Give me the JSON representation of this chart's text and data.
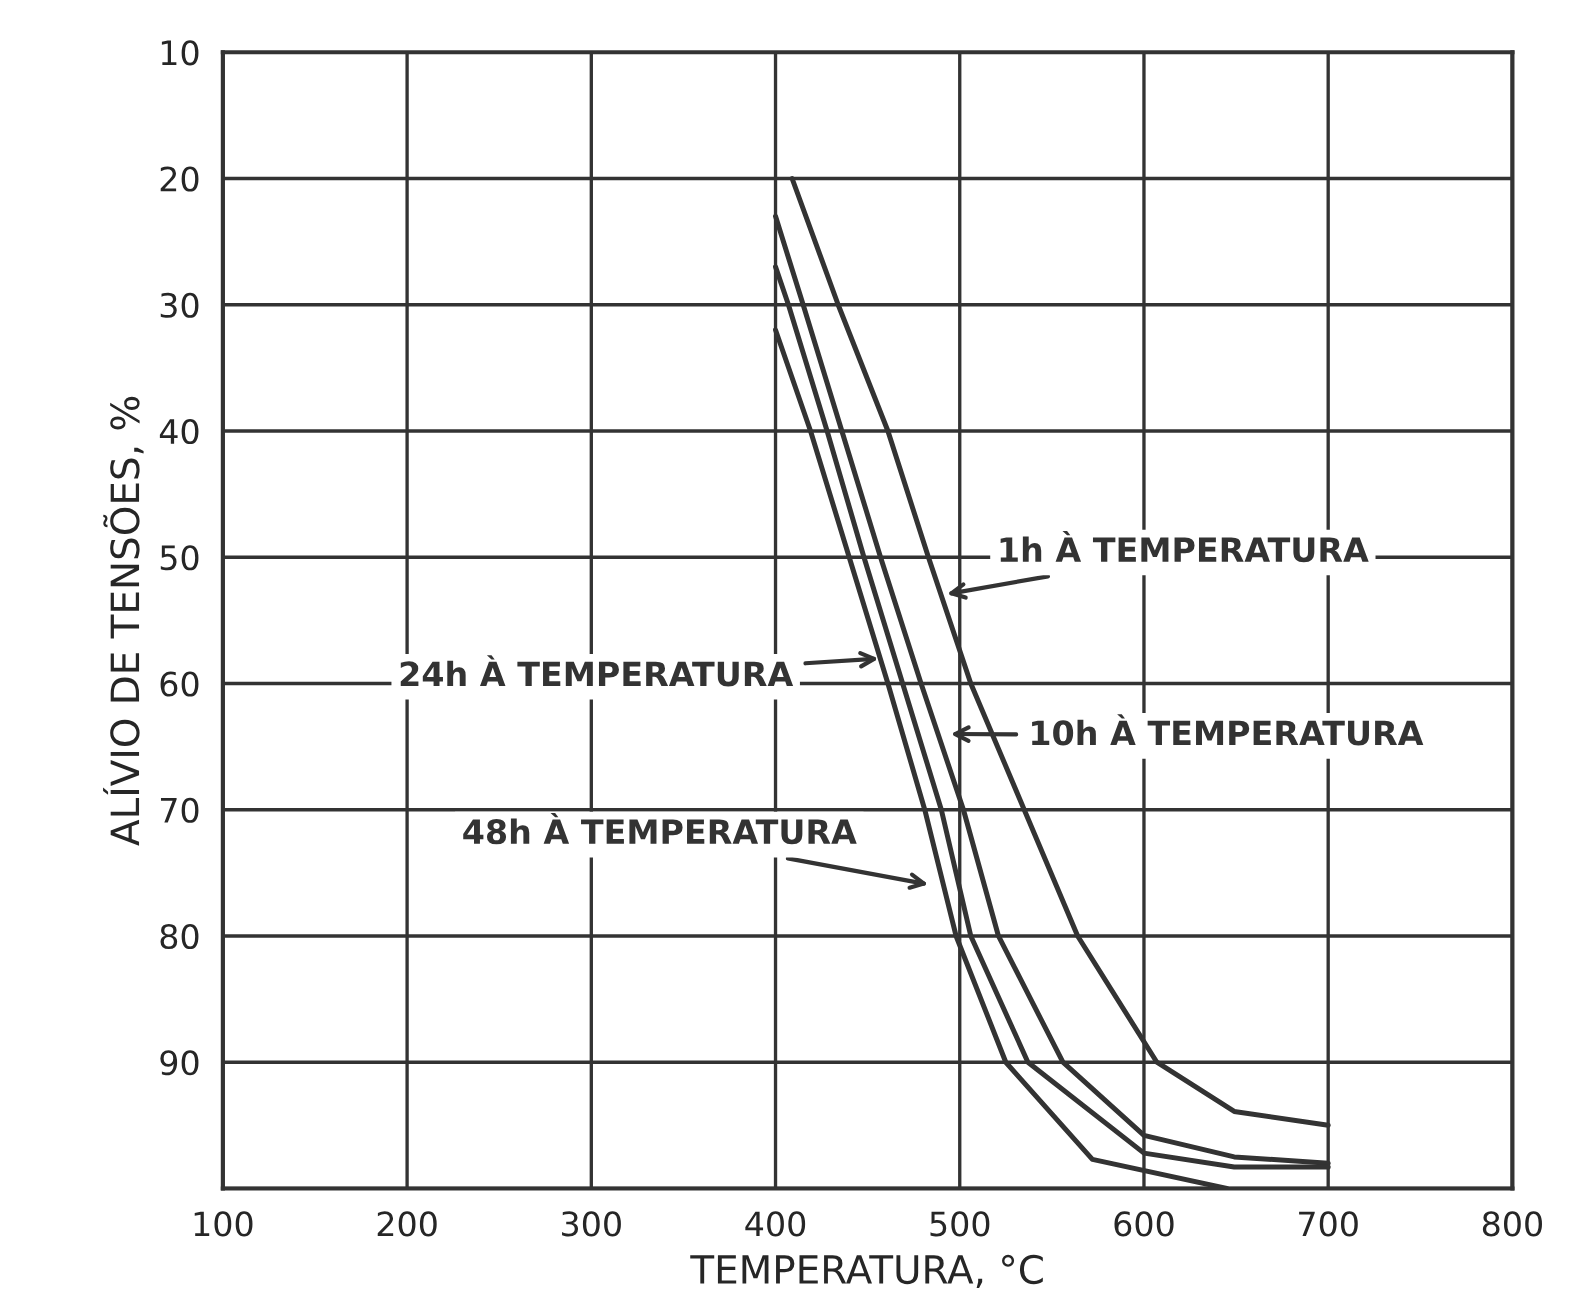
{
  "chart_data": {
    "type": "line",
    "xlabel": "TEMPERATURA, °C",
    "ylabel": "ALÍVIO DE TENSÕES, %",
    "xlim": [
      100,
      800
    ],
    "xticks": [
      100,
      200,
      300,
      400,
      500,
      600,
      700,
      800
    ],
    "ylim": [
      100,
      10
    ],
    "yticks": [
      10,
      20,
      30,
      40,
      50,
      60,
      70,
      80,
      90,
      {
        "value": 100,
        "label": null
      }
    ],
    "grid": true,
    "marker": "none",
    "line_style": "solid",
    "series": [
      {
        "color": "#333333",
        "x": [
          409,
          434,
          461,
          483,
          506,
          535,
          564,
          607,
          649,
          700
        ],
        "values": [
          20,
          30,
          40,
          50,
          60,
          70,
          80,
          90,
          93.9,
          95
        ]
      },
      {
        "color": "#333333",
        "x": [
          400,
          415,
          436,
          457,
          479,
          502,
          521,
          556,
          600,
          649,
          700
        ],
        "values": [
          23,
          30,
          40,
          50,
          60,
          70,
          80,
          90,
          95.8,
          97.5,
          98
        ]
      },
      {
        "color": "#333333",
        "x": [
          400,
          407,
          428,
          448,
          469,
          490,
          506,
          537,
          600,
          649,
          700
        ],
        "values": [
          27,
          30,
          40,
          50,
          60,
          70,
          80,
          90,
          97.2,
          98.3,
          98.3
        ]
      },
      {
        "color": "#333333",
        "x": [
          400,
          419,
          440,
          461,
          481,
          498,
          525,
          572,
          645
        ],
        "values": [
          32,
          40,
          50,
          60,
          70,
          80,
          90,
          97.7,
          100
        ]
      }
    ],
    "annotations": [
      {
        "text": "1h À TEMPERATURA",
        "x": 490,
        "y": 53
      },
      {
        "text": "10h À TEMPERATURA",
        "x": 492,
        "y": 64
      },
      {
        "text": "24h À TEMPERATURA",
        "x": 459,
        "y": 58
      },
      {
        "text": "48h À TEMPERATURA",
        "x": 486,
        "y": 76
      }
    ]
  }
}
